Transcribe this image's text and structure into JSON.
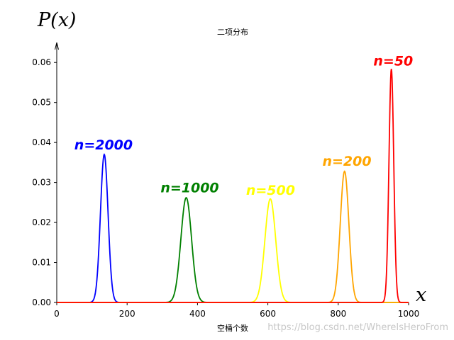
{
  "chart_data": {
    "type": "line",
    "title": "二项分布",
    "xlabel": "空桶个数",
    "ylabel": "",
    "x_symbol": "x",
    "y_symbol": "P(x)",
    "xlim": [
      0,
      1000
    ],
    "ylim": [
      0,
      0.065
    ],
    "xticks": [
      0,
      200,
      400,
      600,
      800,
      1000
    ],
    "yticks": [
      0.0,
      0.01,
      0.02,
      0.03,
      0.04,
      0.05,
      0.06
    ],
    "xtick_labels": [
      "0",
      "200",
      "400",
      "600",
      "800",
      "1000"
    ],
    "ytick_labels": [
      "0.00",
      "0.01",
      "0.02",
      "0.03",
      "0.04",
      "0.05",
      "0.06"
    ],
    "grid": false,
    "legend": "none",
    "series": [
      {
        "label": "n=2000",
        "color": "#0000ff",
        "peak_x": 135,
        "peak_y": 0.037,
        "sigma": 10.8,
        "label_x": 50,
        "label_y": 0.0395
      },
      {
        "label": "n=1000",
        "color": "#008000",
        "peak_x": 368,
        "peak_y": 0.0262,
        "sigma": 15.2,
        "label_x": 295,
        "label_y": 0.0288
      },
      {
        "label": "n=500",
        "color": "#ffff00",
        "peak_x": 607,
        "peak_y": 0.0259,
        "sigma": 15.4,
        "label_x": 538,
        "label_y": 0.0282
      },
      {
        "label": "n=200",
        "color": "#ffa500",
        "peak_x": 818,
        "peak_y": 0.0328,
        "sigma": 12.2,
        "label_x": 755,
        "label_y": 0.0354
      },
      {
        "label": "n=50",
        "color": "#ff0000",
        "peak_x": 951,
        "peak_y": 0.0584,
        "sigma": 6.8,
        "label_x": 900,
        "label_y": 0.0605
      }
    ]
  },
  "watermark": "https://blog.csdn.net/WhereIsHeroFrom"
}
